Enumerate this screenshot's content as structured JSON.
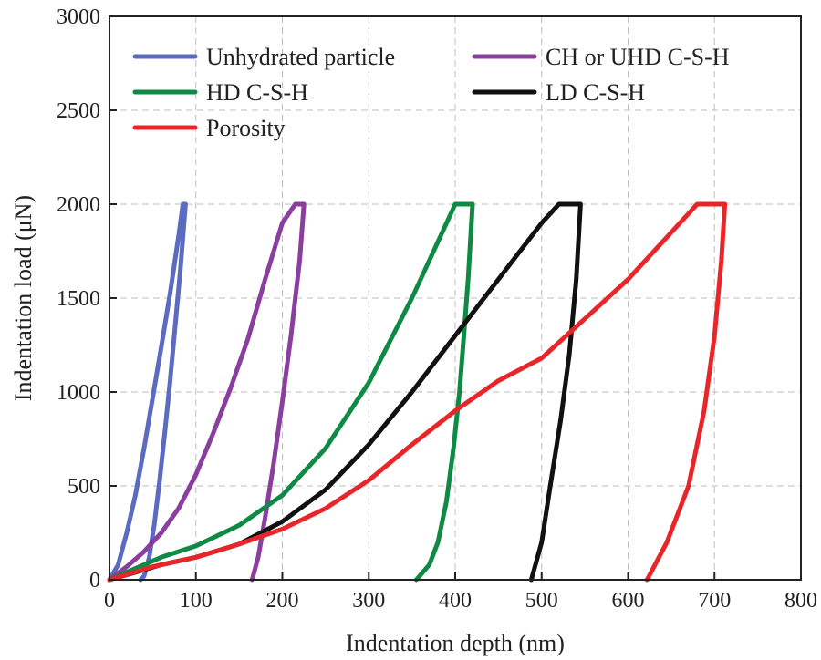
{
  "chart_data": {
    "type": "line",
    "title": "",
    "xlabel": "Indentation depth (nm)",
    "ylabel": "Indentation load (μN)",
    "xlim": [
      0,
      800
    ],
    "ylim": [
      0,
      3000
    ],
    "xticks": [
      0,
      100,
      200,
      300,
      400,
      500,
      600,
      700,
      800
    ],
    "yticks": [
      0,
      500,
      1000,
      1500,
      2000,
      2500,
      3000
    ],
    "grid": true,
    "legend_position": "top",
    "series": [
      {
        "name": "Unhydrated particle",
        "color": "#5b6bbf",
        "x": [
          0,
          10,
          20,
          30,
          40,
          50,
          60,
          70,
          80,
          85,
          88,
          82,
          76,
          70,
          64,
          58,
          52,
          46,
          40,
          36
        ],
        "y": [
          0,
          80,
          250,
          450,
          700,
          970,
          1240,
          1520,
          1830,
          2000,
          2000,
          1650,
          1350,
          1050,
          780,
          530,
          300,
          120,
          20,
          0
        ]
      },
      {
        "name": "CH or UHD C-S-H",
        "color": "#8a3f9e",
        "x": [
          0,
          20,
          40,
          60,
          80,
          100,
          120,
          140,
          160,
          180,
          200,
          215,
          225,
          220,
          210,
          200,
          190,
          180,
          172,
          165
        ],
        "y": [
          0,
          70,
          150,
          250,
          380,
          560,
          780,
          1020,
          1280,
          1600,
          1900,
          2000,
          2000,
          1700,
          1300,
          950,
          620,
          330,
          120,
          0
        ]
      },
      {
        "name": "HD C-S-H",
        "color": "#0f8a45",
        "x": [
          0,
          30,
          60,
          100,
          150,
          200,
          250,
          300,
          350,
          380,
          400,
          420,
          415,
          410,
          405,
          398,
          390,
          380,
          370,
          355
        ],
        "y": [
          0,
          60,
          120,
          180,
          290,
          450,
          700,
          1050,
          1500,
          1800,
          2000,
          2000,
          1600,
          1300,
          1000,
          700,
          420,
          200,
          80,
          0
        ]
      },
      {
        "name": "LD C-S-H",
        "color": "#111111",
        "x": [
          0,
          30,
          60,
          100,
          150,
          200,
          250,
          300,
          350,
          400,
          450,
          500,
          520,
          545,
          540,
          532,
          522,
          510,
          500,
          488
        ],
        "y": [
          0,
          40,
          80,
          120,
          190,
          310,
          480,
          720,
          1000,
          1300,
          1600,
          1900,
          2000,
          2000,
          1600,
          1200,
          850,
          500,
          200,
          0
        ]
      },
      {
        "name": "Porosity",
        "color": "#e8262a",
        "x": [
          0,
          50,
          100,
          150,
          200,
          250,
          300,
          350,
          400,
          450,
          500,
          550,
          600,
          650,
          680,
          712,
          708,
          700,
          688,
          670,
          645,
          622
        ],
        "y": [
          0,
          70,
          120,
          190,
          270,
          380,
          530,
          720,
          900,
          1060,
          1180,
          1390,
          1600,
          1850,
          2000,
          2000,
          1700,
          1300,
          900,
          500,
          200,
          0
        ]
      }
    ],
    "legend_columns": [
      [
        "Unhydrated particle",
        "HD C-S-H",
        "Porosity"
      ],
      [
        "CH or UHD C-S-H",
        "LD C-S-H"
      ]
    ]
  }
}
